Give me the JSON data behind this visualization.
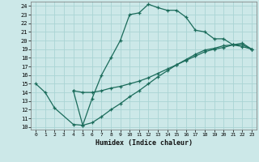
{
  "title": "",
  "xlabel": "Humidex (Indice chaleur)",
  "bg_color": "#cce8e8",
  "grid_color": "#aad4d4",
  "line_color": "#1a6b5a",
  "xlim": [
    -0.5,
    23.5
  ],
  "ylim": [
    9.7,
    24.5
  ],
  "xticks": [
    0,
    1,
    2,
    3,
    4,
    5,
    6,
    7,
    8,
    9,
    10,
    11,
    12,
    13,
    14,
    15,
    16,
    17,
    18,
    19,
    20,
    21,
    22,
    23
  ],
  "yticks": [
    10,
    11,
    12,
    13,
    14,
    15,
    16,
    17,
    18,
    19,
    20,
    21,
    22,
    23,
    24
  ],
  "line1_x": [
    0,
    1,
    2,
    4,
    5,
    6,
    7,
    8,
    9,
    10,
    11,
    12,
    13,
    14,
    15,
    16,
    17,
    18,
    19,
    20,
    21,
    22,
    23
  ],
  "line1_y": [
    15,
    14,
    12.2,
    10.3,
    10.2,
    13.3,
    16.0,
    18.0,
    20.0,
    23.0,
    23.2,
    24.2,
    23.8,
    23.5,
    23.5,
    22.7,
    21.2,
    21.0,
    20.2,
    20.2,
    19.5,
    19.3,
    19.0
  ],
  "line2_x": [
    4,
    5,
    6,
    7,
    8,
    9,
    10,
    11,
    12,
    13,
    14,
    15,
    16,
    17,
    18,
    19,
    20,
    21,
    22,
    23
  ],
  "line2_y": [
    14.2,
    14.0,
    14.0,
    14.2,
    14.5,
    14.7,
    15.0,
    15.3,
    15.7,
    16.2,
    16.7,
    17.2,
    17.7,
    18.2,
    18.7,
    19.0,
    19.2,
    19.5,
    19.7,
    19.0
  ],
  "line3_x": [
    4,
    5,
    6,
    7,
    8,
    9,
    10,
    11,
    12,
    13,
    14,
    15,
    16,
    17,
    18,
    19,
    20,
    21,
    22,
    23
  ],
  "line3_y": [
    14.2,
    10.2,
    10.5,
    11.2,
    12.0,
    12.7,
    13.5,
    14.2,
    15.0,
    15.8,
    16.5,
    17.2,
    17.8,
    18.4,
    18.9,
    19.1,
    19.4,
    19.5,
    19.5,
    19.0
  ]
}
